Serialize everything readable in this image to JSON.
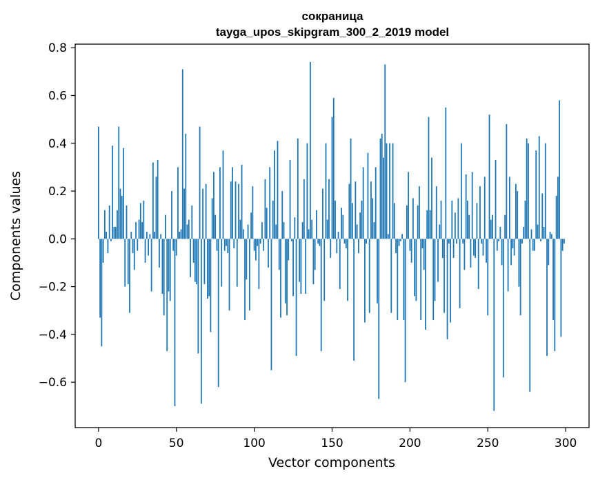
{
  "chart_data": {
    "type": "bar",
    "title_line1": "сокраница",
    "title_line2": "tayga_upos_skipgram_300_2_2019 model",
    "xlabel": "Vector components",
    "ylabel": "Components values",
    "xlim": [
      -15,
      315
    ],
    "ylim": [
      -0.79,
      0.815
    ],
    "xticks": [
      0,
      50,
      100,
      150,
      200,
      250,
      300
    ],
    "xtick_labels": [
      "0",
      "50",
      "100",
      "150",
      "200",
      "250",
      "300"
    ],
    "yticks": [
      -0.6,
      -0.4,
      -0.2,
      0.0,
      0.2,
      0.4,
      0.6,
      0.8
    ],
    "ytick_labels": [
      "−0.6",
      "−0.4",
      "−0.2",
      "0.0",
      "0.2",
      "0.4",
      "0.6",
      "0.8"
    ],
    "bar_color": "#1f77b4",
    "grid": false,
    "values": [
      0.47,
      -0.33,
      -0.45,
      -0.1,
      0.12,
      0.03,
      -0.06,
      0.14,
      -0.01,
      0.39,
      0.05,
      0.05,
      0.12,
      0.47,
      0.21,
      0.18,
      0.38,
      -0.2,
      0.14,
      -0.19,
      -0.31,
      0.03,
      -0.06,
      -0.13,
      0.07,
      -0.05,
      0.08,
      0.15,
      0.07,
      0.16,
      -0.1,
      0.03,
      -0.07,
      0.02,
      -0.22,
      0.32,
      0.03,
      0.26,
      0.33,
      -0.12,
      0.02,
      -0.23,
      -0.32,
      0.1,
      -0.47,
      -0.22,
      -0.26,
      0.2,
      -0.05,
      -0.7,
      -0.07,
      0.3,
      0.03,
      0.04,
      0.71,
      0.21,
      0.44,
      0.06,
      0.08,
      -0.16,
      0.14,
      -0.1,
      -0.18,
      -0.19,
      -0.48,
      0.47,
      -0.69,
      0.21,
      -0.19,
      0.23,
      -0.25,
      -0.24,
      -0.39,
      0.17,
      0.28,
      0.1,
      -0.05,
      -0.62,
      0.3,
      -0.2,
      0.37,
      -0.05,
      -0.03,
      -0.06,
      -0.3,
      0.24,
      0.3,
      -0.04,
      0.24,
      -0.2,
      0.23,
      0.08,
      0.31,
      0.04,
      -0.34,
      -0.17,
      0.06,
      -0.3,
      0.11,
      0.22,
      -0.05,
      -0.09,
      -0.03,
      -0.21,
      -0.02,
      0.07,
      -0.05,
      0.25,
      0.13,
      -0.12,
      0.3,
      -0.55,
      0.16,
      0.37,
      0.06,
      0.41,
      -0.13,
      -0.33,
      0.2,
      0.07,
      -0.27,
      -0.32,
      -0.09,
      0.33,
      -0.01,
      -0.24,
      0.09,
      -0.49,
      0.42,
      -0.18,
      -0.23,
      0.07,
      0.25,
      -0.23,
      0.4,
      0.04,
      0.74,
      0.08,
      -0.19,
      -0.13,
      0.12,
      -0.02,
      -0.03,
      -0.47,
      0.21,
      -0.26,
      0.4,
      0.08,
      0.25,
      -0.08,
      0.51,
      0.59,
      0.16,
      -0.06,
      0.03,
      -0.21,
      0.13,
      0.1,
      -0.02,
      -0.04,
      -0.26,
      0.23,
      0.42,
      0.15,
      -0.51,
      0.24,
      0.06,
      -0.06,
      0.11,
      0.16,
      0.3,
      -0.35,
      -0.02,
      0.36,
      -0.31,
      0.24,
      0.17,
      0.07,
      0.3,
      -0.27,
      -0.67,
      0.42,
      0.44,
      0.34,
      0.73,
      0.4,
      0.02,
      0.4,
      -0.31,
      0.4,
      0.15,
      -0.06,
      -0.34,
      -0.03,
      -0.01,
      0.02,
      -0.34,
      -0.6,
      0.14,
      0.28,
      -0.05,
      -0.1,
      0.17,
      -0.24,
      -0.26,
      0.14,
      0.22,
      -0.34,
      -0.04,
      -0.13,
      -0.38,
      0.12,
      0.51,
      0.12,
      0.34,
      -0.34,
      -0.26,
      0.22,
      -0.18,
      0.06,
      0.16,
      -0.08,
      -0.31,
      0.55,
      -0.42,
      -0.02,
      -0.35,
      0.16,
      -0.08,
      0.11,
      -0.02,
      0.17,
      -0.29,
      0.4,
      -0.02,
      -0.13,
      0.27,
      0.16,
      0.1,
      -0.12,
      0.28,
      -0.07,
      -0.08,
      0.15,
      -0.21,
      0.22,
      -0.02,
      -0.07,
      0.26,
      -0.1,
      -0.32,
      0.52,
      0.08,
      0.1,
      -0.72,
      0.33,
      -0.05,
      -0.01,
      0.05,
      -0.11,
      -0.58,
      0.1,
      0.48,
      -0.22,
      0.26,
      -0.11,
      -0.04,
      -0.07,
      0.23,
      0.2,
      -0.2,
      -0.32,
      -0.02,
      0.05,
      0.16,
      0.42,
      0.4,
      -0.64,
      0.04,
      -0.05,
      -0.05,
      0.37,
      0.06,
      0.43,
      -0.01,
      0.19,
      0.05,
      0.4,
      -0.49,
      -0.11,
      0.03,
      0.02,
      -0.34,
      -0.47,
      0.18,
      0.26,
      0.58,
      -0.41,
      -0.05,
      -0.02
    ]
  }
}
